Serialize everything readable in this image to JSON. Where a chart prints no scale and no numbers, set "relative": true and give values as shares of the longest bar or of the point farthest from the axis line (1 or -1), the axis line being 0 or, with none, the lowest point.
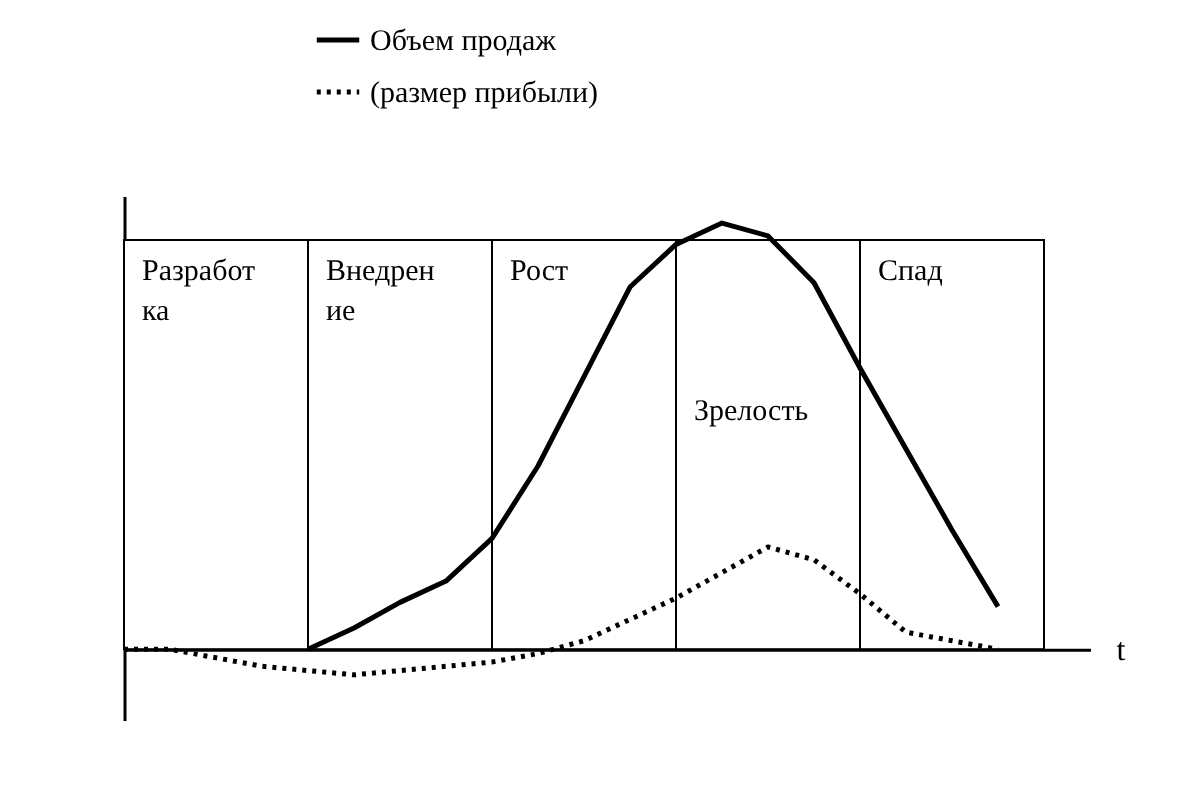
{
  "chart_data": {
    "type": "line",
    "relative": true,
    "xlabel": "t",
    "legend": "top",
    "marker": "none",
    "categories": [
      null,
      null,
      null,
      null,
      null,
      null,
      null,
      null,
      null,
      null,
      null,
      null,
      null,
      null,
      null,
      null,
      null,
      null,
      null,
      null,
      null,
      null
    ],
    "series": [
      {
        "name": "Объем продаж",
        "color": "#000000",
        "line_style": "solid",
        "values": [
          null,
          null,
          null,
          null,
          0,
          0.05,
          0.11,
          0.16,
          0.26,
          0.43,
          0.64,
          0.85,
          0.95,
          1,
          0.97,
          0.86,
          0.66,
          0.47,
          0.28,
          0.1,
          null,
          null
        ]
      },
      {
        "name": "(размер прибыли)",
        "color": "#000000",
        "line_style": "dotted",
        "values": [
          0,
          0,
          -0.02,
          -0.04,
          -0.05,
          -0.06,
          -0.05,
          -0.04,
          -0.03,
          -0.01,
          0.02,
          0.07,
          0.12,
          0.18,
          0.24,
          0.21,
          0.13,
          0.04,
          0.02,
          0,
          null,
          null
        ]
      }
    ],
    "annotations": [
      "Разработ\nка",
      "Внедрен\nие",
      "Рост",
      "Зрелость",
      "Спад"
    ]
  }
}
